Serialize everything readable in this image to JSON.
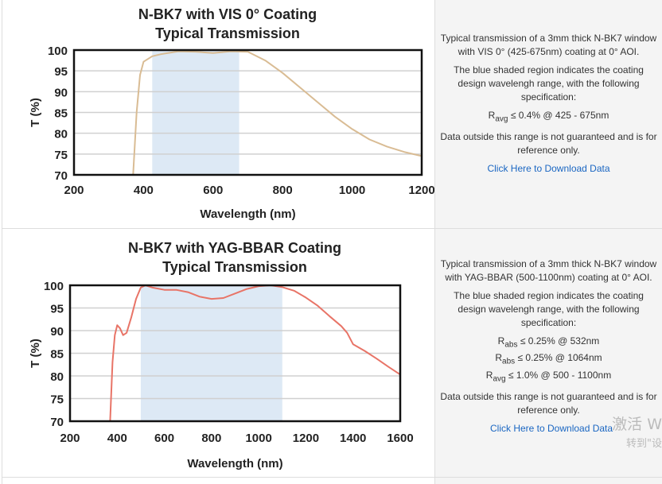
{
  "chart_data": [
    {
      "type": "line",
      "title": "N-BK7 with VIS 0° Coating",
      "subtitle": "Typical Transmission",
      "xlabel": "Wavelength (nm)",
      "ylabel": "T (%)",
      "xlim": [
        200,
        1200
      ],
      "ylim": [
        70,
        100
      ],
      "xticks": [
        200,
        400,
        600,
        800,
        1000,
        1200
      ],
      "yticks": [
        70,
        75,
        80,
        85,
        90,
        95,
        100
      ],
      "grid": true,
      "shaded_region": [
        425,
        675
      ],
      "shade_color": "#dde9f5",
      "line_color": "#d9bc94",
      "x": [
        370,
        380,
        390,
        400,
        425,
        450,
        500,
        550,
        600,
        650,
        700,
        750,
        800,
        850,
        900,
        950,
        1000,
        1050,
        1100,
        1150,
        1200
      ],
      "y": [
        70,
        85,
        94,
        97.2,
        98.5,
        99,
        99.7,
        99.6,
        99.3,
        99.7,
        99.6,
        97.5,
        94.5,
        91,
        87.5,
        84,
        81,
        78.5,
        76.8,
        75.5,
        74.5
      ]
    },
    {
      "type": "line",
      "title": "N-BK7 with YAG-BBAR Coating",
      "subtitle": "Typical Transmission",
      "xlabel": "Wavelength (nm)",
      "ylabel": "T (%)",
      "xlim": [
        200,
        1600
      ],
      "ylim": [
        70,
        100
      ],
      "xticks": [
        200,
        400,
        600,
        800,
        1000,
        1200,
        1400,
        1600
      ],
      "yticks": [
        70,
        75,
        80,
        85,
        90,
        95,
        100
      ],
      "grid": true,
      "shaded_region": [
        500,
        1100
      ],
      "shade_color": "#dde9f5",
      "line_color": "#e87467",
      "x": [
        370,
        380,
        390,
        400,
        412,
        425,
        440,
        460,
        480,
        500,
        520,
        550,
        600,
        650,
        700,
        750,
        800,
        850,
        900,
        950,
        1000,
        1050,
        1100,
        1150,
        1200,
        1250,
        1300,
        1350,
        1375,
        1400,
        1450,
        1500,
        1550,
        1600
      ],
      "y": [
        70,
        83,
        89,
        91.2,
        90.5,
        89,
        89.5,
        93,
        97,
        99.5,
        100,
        99.5,
        99,
        99,
        98.5,
        97.5,
        97,
        97.2,
        98.2,
        99.2,
        99.8,
        100,
        99.6,
        98.8,
        97.3,
        95.5,
        93.2,
        91,
        89.5,
        87,
        85.5,
        83.8,
        82,
        80.3
      ]
    }
  ],
  "descriptions": [
    {
      "p1": "Typical transmission of a 3mm thick N-BK7 window with VIS 0° (425-675nm) coating at 0° AOI.",
      "p2": "The blue shaded region indicates the coating design wavelengh range, with the following specification:",
      "specs": [
        {
          "sym": "R",
          "sub": "avg",
          "text": "≤ 0.4% @ 425 - 675nm"
        }
      ],
      "p3": "Data outside this range is not guaranteed and is for reference only.",
      "link": "Click Here to Download Data"
    },
    {
      "p1": "Typical transmission of a 3mm thick N-BK7 window with YAG-BBAR (500-1100nm) coating at 0° AOI.",
      "p2": "The blue shaded region indicates the coating design wavelengh range, with the following specification:",
      "specs": [
        {
          "sym": "R",
          "sub": "abs",
          "text": "≤ 0.25% @ 532nm"
        },
        {
          "sym": "R",
          "sub": "abs",
          "text": "≤ 0.25% @ 1064nm"
        },
        {
          "sym": "R",
          "sub": "avg",
          "text": "≤ 1.0% @ 500 - 1100nm"
        }
      ],
      "p3": "Data outside this range is not guaranteed and is for reference only.",
      "link": "Click Here to Download Data"
    }
  ],
  "watermark": {
    "line1": "激活 W",
    "line2": "转到\"设"
  }
}
